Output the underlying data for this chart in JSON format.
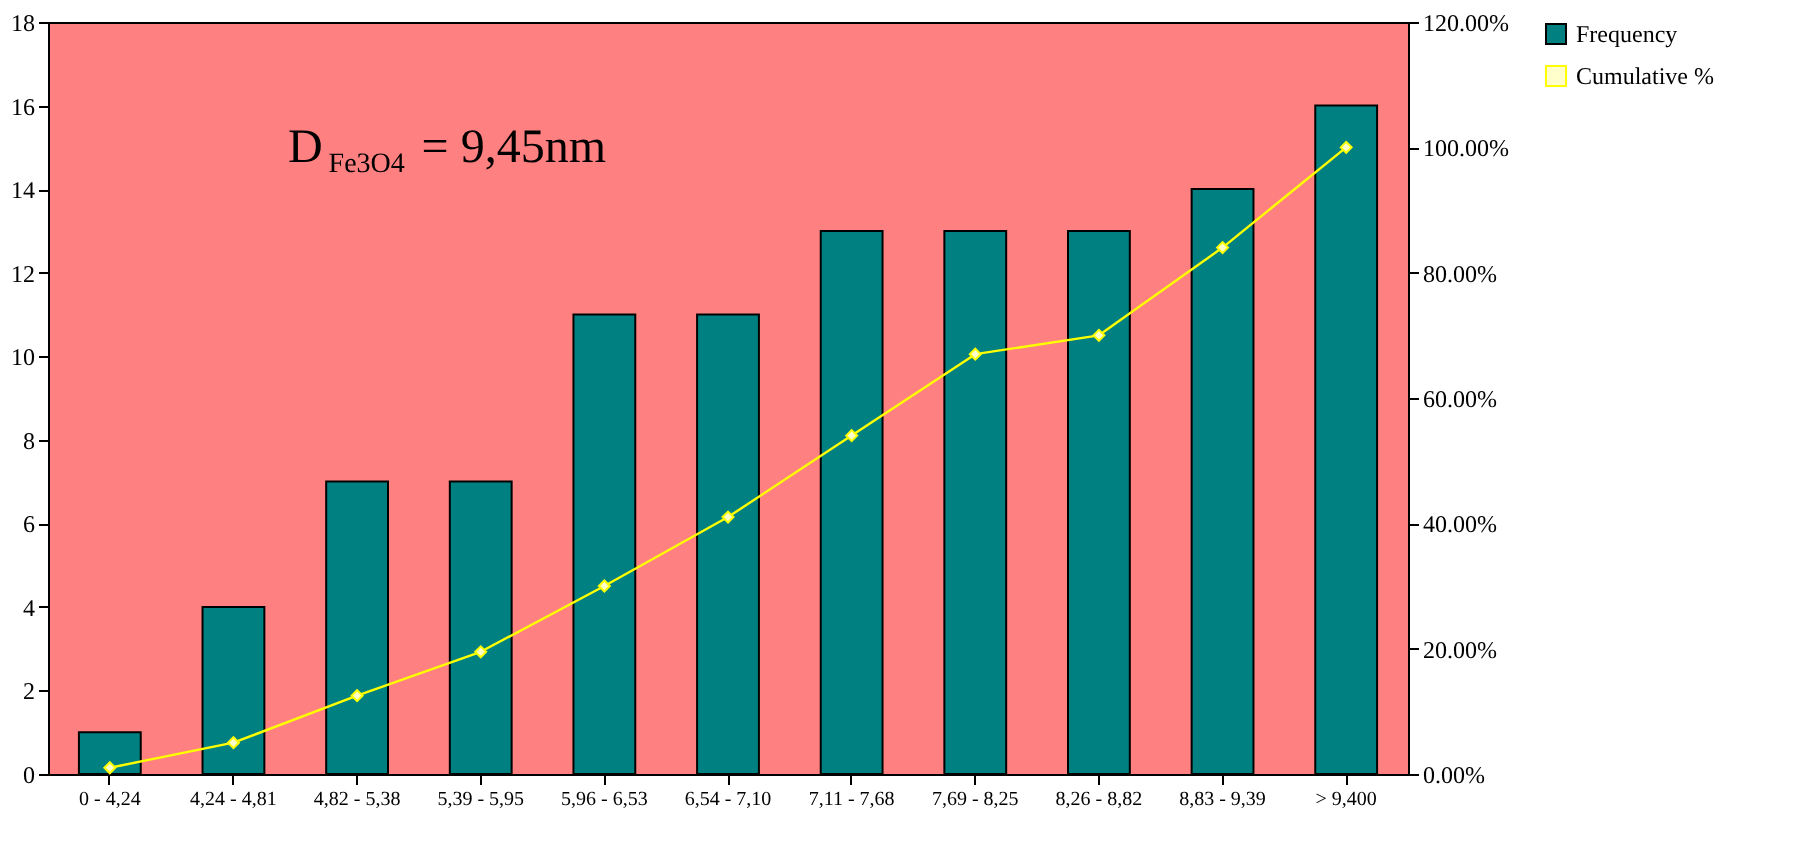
{
  "chart_data": {
    "type": "bar",
    "categories": [
      "0 - 4,24",
      "4,24 - 4,81",
      "4,82 - 5,38",
      "5,39 - 5,95",
      "5,96 - 6,53",
      "6,54 - 7,10",
      "7,11 - 7,68",
      "7,69 - 8,25",
      "8,26 - 8,82",
      "8,83 - 9,39",
      "> 9,400"
    ],
    "series": [
      {
        "name": "Frequency",
        "color": "#008080",
        "values": [
          1,
          4,
          7,
          7,
          11,
          11,
          13,
          13,
          13,
          14,
          16
        ]
      },
      {
        "name": "Cumulative %",
        "type": "line",
        "axis": "y2",
        "color": "#ffff00",
        "marker": "diamond",
        "values": [
          1,
          5,
          12.5,
          19.5,
          30,
          41,
          54,
          67,
          70,
          84,
          100
        ]
      }
    ],
    "ylim": [
      0,
      18
    ],
    "yticks": [
      0,
      2,
      4,
      6,
      8,
      10,
      12,
      14,
      16,
      18
    ],
    "y2lim": [
      0,
      120
    ],
    "y2ticks": [
      {
        "value": 0,
        "label": "0.00%"
      },
      {
        "value": 20,
        "label": "20.00%"
      },
      {
        "value": 40,
        "label": "40.00%"
      },
      {
        "value": 60,
        "label": "60.00%"
      },
      {
        "value": 80,
        "label": "80.00%"
      },
      {
        "value": 100,
        "label": "100.00%"
      },
      {
        "value": 120,
        "label": "120.00%"
      }
    ],
    "annotations": [
      "D$_{Fe3O4}$ = 9,45nm"
    ],
    "grid": false,
    "legend": "right",
    "line_style": "solid"
  }
}
